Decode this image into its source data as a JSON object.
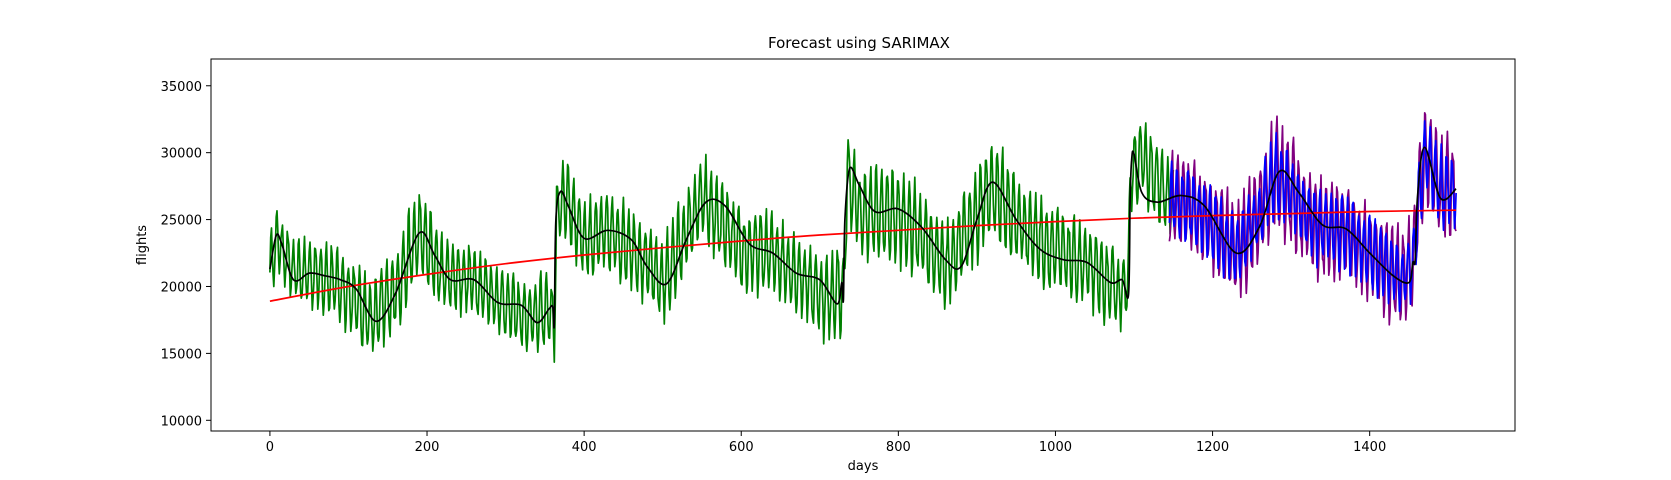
{
  "chart_data": {
    "type": "line",
    "title": "Forecast using SARIMAX",
    "xlabel": "days",
    "ylabel": "flights",
    "xlim": [
      -75,
      1585
    ],
    "ylim": [
      9200,
      37000
    ],
    "xticks": [
      0,
      200,
      400,
      600,
      800,
      1000,
      1200,
      1400
    ],
    "yticks": [
      10000,
      15000,
      20000,
      25000,
      30000,
      35000
    ],
    "grid": false,
    "legend": "none",
    "series": [
      {
        "color": "#008000",
        "style": "noisy",
        "x": [
          0,
          10,
          30,
          50,
          70,
          100,
          130,
          160,
          190,
          220,
          260,
          300,
          330,
          355,
          362,
          365,
          375,
          400,
          430,
          460,
          500,
          530,
          550,
          570,
          600,
          640,
          680,
          710,
          725,
          730,
          735,
          750,
          790,
          830,
          860,
          890,
          920,
          950,
          990,
          1040,
          1080,
          1093,
          1096,
          1110,
          1150
        ],
        "y": [
          21500,
          23500,
          21000,
          21000,
          20800,
          19500,
          17500,
          19800,
          24000,
          21000,
          20500,
          18700,
          17500,
          18500,
          17200,
          25000,
          27000,
          23500,
          24000,
          23000,
          20200,
          24000,
          26500,
          25000,
          22500,
          22500,
          20500,
          19000,
          20000,
          19000,
          28500,
          25500,
          25500,
          24000,
          21500,
          24500,
          27500,
          25000,
          23000,
          21500,
          19500,
          20500,
          29000,
          29500,
          26000
        ],
        "amp": [
          2500,
          2600,
          2600,
          2800,
          3200,
          3300,
          3400,
          3600,
          3900,
          3400,
          2900,
          2700,
          2900,
          3200,
          3000,
          3200,
          3400,
          3400,
          3300,
          3400,
          3500,
          3700,
          3900,
          3700,
          3400,
          3300,
          3200,
          3600,
          3800,
          3600,
          3600,
          3700,
          3900,
          3800,
          3700,
          3900,
          4200,
          3800,
          3500,
          3300,
          3300,
          3300,
          3600,
          3400,
          3200
        ]
      },
      {
        "color": "#800080",
        "style": "noisy",
        "x": [
          1145,
          1170,
          1200,
          1230,
          1260,
          1280,
          1300,
          1330,
          1370,
          1400,
          1440,
          1455,
          1462,
          1470,
          1490,
          1510
        ],
        "y": [
          26500,
          26000,
          24500,
          22500,
          25500,
          28500,
          27000,
          24500,
          24000,
          22500,
          20500,
          21500,
          26500,
          30000,
          27500,
          27000
        ],
        "amp": [
          4000,
          4000,
          4200,
          4300,
          4600,
          5000,
          4600,
          4200,
          4000,
          4000,
          4200,
          4300,
          4500,
          4700,
          4500,
          4300
        ]
      },
      {
        "color": "#0000ff",
        "style": "noisy",
        "x": [
          1145,
          1170,
          1200,
          1230,
          1260,
          1280,
          1300,
          1330,
          1370,
          1400,
          1440,
          1455,
          1462,
          1470,
          1490,
          1510
        ],
        "y": [
          26500,
          26000,
          24500,
          22500,
          25500,
          28500,
          27000,
          24500,
          24000,
          22500,
          20500,
          21500,
          26500,
          30000,
          27500,
          27000
        ],
        "amp": [
          3000,
          3000,
          3100,
          3100,
          3200,
          3300,
          3200,
          3100,
          3000,
          3000,
          2900,
          2900,
          3200,
          3300,
          3200,
          3100
        ]
      },
      {
        "color": "#ff0000",
        "style": "smooth",
        "x": [
          0,
          100,
          200,
          300,
          400,
          500,
          600,
          700,
          800,
          900,
          1000,
          1100,
          1200,
          1300,
          1400,
          1510
        ],
        "y": [
          18900,
          20000,
          20900,
          21700,
          22350,
          22900,
          23400,
          23850,
          24200,
          24550,
          24850,
          25100,
          25300,
          25450,
          25600,
          25700
        ]
      },
      {
        "color": "#000000",
        "style": "smooth",
        "x": [
          0,
          8,
          15,
          30,
          50,
          70,
          90,
          110,
          135,
          160,
          190,
          210,
          230,
          260,
          290,
          320,
          340,
          355,
          360,
          362,
          364,
          370,
          380,
          400,
          430,
          460,
          480,
          505,
          530,
          555,
          580,
          610,
          640,
          670,
          700,
          722,
          728,
          730,
          732,
          738,
          750,
          770,
          800,
          830,
          860,
          880,
          900,
          920,
          950,
          980,
          1010,
          1040,
          1070,
          1085,
          1093,
          1095,
          1097,
          1100,
          1110,
          1130,
          1160,
          1190,
          1230,
          1260,
          1285,
          1310,
          1340,
          1370,
          1400,
          1430,
          1450,
          1455,
          1458,
          1461,
          1470,
          1490,
          1510
        ],
        "y": [
          21300,
          23800,
          23200,
          20500,
          21000,
          20800,
          20500,
          19800,
          17400,
          19500,
          24000,
          22300,
          20500,
          20500,
          18800,
          18600,
          17300,
          18300,
          18500,
          17200,
          25000,
          27100,
          26000,
          23600,
          24200,
          23500,
          21500,
          20200,
          23500,
          26300,
          26000,
          23200,
          22500,
          21000,
          20500,
          18700,
          20300,
          19000,
          25000,
          28800,
          27600,
          25600,
          25800,
          24400,
          22000,
          21500,
          25000,
          27800,
          25000,
          22800,
          22000,
          21800,
          20300,
          20500,
          19400,
          26500,
          29500,
          29900,
          27000,
          26300,
          26800,
          26000,
          22500,
          24500,
          28600,
          27000,
          24600,
          24300,
          22500,
          20800,
          20300,
          21800,
          22000,
          26800,
          30400,
          26600,
          27300
        ]
      }
    ]
  }
}
